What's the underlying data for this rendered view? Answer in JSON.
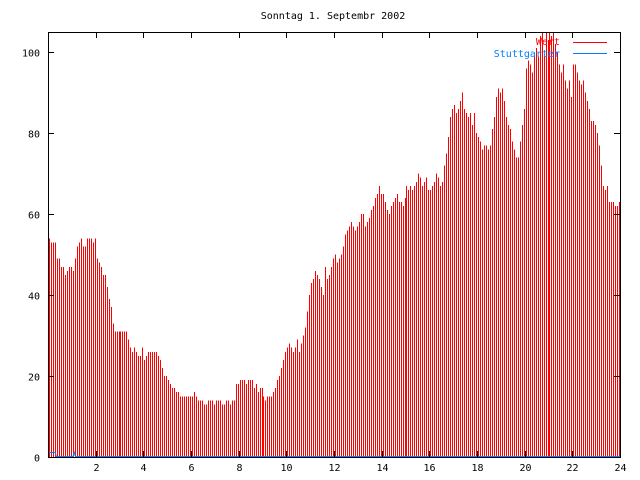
{
  "chart_data": {
    "type": "bar",
    "title": "Sonntag 1. Septembr 2002",
    "xlabel": "",
    "ylabel": "",
    "xlim": [
      0,
      24
    ],
    "ylim": [
      0,
      105
    ],
    "xticks": [
      2,
      4,
      6,
      8,
      10,
      12,
      14,
      16,
      18,
      20,
      22,
      24
    ],
    "yticks": [
      0,
      20,
      40,
      60,
      80,
      100
    ],
    "interval_hours": 0.08333,
    "legend_position": "top-right",
    "series": [
      {
        "name": "Wert",
        "color": "#ff0000",
        "style": "impulses",
        "values": [
          54,
          53,
          53,
          53,
          49,
          49,
          47,
          47,
          45,
          46,
          47,
          47,
          46,
          49,
          52,
          53,
          54,
          52,
          52,
          54,
          54,
          54,
          53,
          54,
          49,
          48,
          47,
          45,
          45,
          42,
          39,
          37,
          33,
          31,
          31,
          31,
          31,
          31,
          31,
          31,
          29,
          27,
          26,
          27,
          26,
          25,
          25,
          27,
          24,
          25,
          26,
          26,
          26,
          26,
          26,
          25,
          24,
          22,
          20,
          20,
          19,
          18,
          17,
          17,
          16,
          16,
          15,
          15,
          15,
          15,
          15,
          15,
          15,
          16,
          15,
          14,
          14,
          14,
          13,
          13,
          14,
          14,
          14,
          13,
          14,
          14,
          14,
          13,
          13,
          14,
          14,
          13,
          14,
          14,
          18,
          18,
          19,
          19,
          19,
          18,
          19,
          19,
          19,
          17,
          18,
          16,
          17,
          17,
          15,
          14,
          15,
          15,
          15,
          16,
          17,
          19,
          20,
          22,
          24,
          26,
          27,
          28,
          27,
          26,
          27,
          29,
          26,
          28,
          30,
          32,
          36,
          40,
          43,
          44,
          46,
          45,
          44,
          42,
          40,
          47,
          44,
          45,
          47,
          49,
          50,
          48,
          49,
          50,
          52,
          55,
          56,
          57,
          58,
          57,
          56,
          57,
          58,
          60,
          60,
          57,
          58,
          59,
          61,
          62,
          64,
          65,
          67,
          65,
          65,
          63,
          61,
          60,
          62,
          63,
          64,
          65,
          63,
          63,
          62,
          64,
          67,
          66,
          67,
          66,
          67,
          68,
          70,
          69,
          67,
          68,
          69,
          66,
          66,
          67,
          68,
          70,
          69,
          67,
          68,
          72,
          75,
          79,
          84,
          86,
          87,
          85,
          86,
          88,
          90,
          86,
          85,
          84,
          85,
          82,
          85,
          80,
          79,
          78,
          76,
          77,
          77,
          76,
          77,
          81,
          84,
          89,
          91,
          90,
          91,
          88,
          84,
          82,
          81,
          78,
          76,
          74,
          74,
          78,
          82,
          86,
          96,
          98,
          97,
          95,
          99,
          101,
          99,
          104,
          105,
          99,
          105,
          103,
          105,
          104,
          105,
          102,
          100,
          97,
          95,
          97,
          93,
          91,
          93,
          89,
          97,
          97,
          95,
          93,
          92,
          93,
          90,
          88,
          86,
          83,
          83,
          82,
          80,
          77,
          72,
          67,
          66,
          67,
          63,
          63,
          63,
          62,
          62,
          63
        ]
      },
      {
        "name": "Stuttgarter",
        "color": "#0080ff",
        "style": "lines",
        "points": [
          [
            0,
            1
          ],
          [
            0.3,
            1
          ],
          [
            0.35,
            0
          ],
          [
            1.05,
            0
          ],
          [
            1.1,
            1
          ],
          [
            1.15,
            0
          ],
          [
            24,
            0
          ]
        ]
      }
    ]
  }
}
